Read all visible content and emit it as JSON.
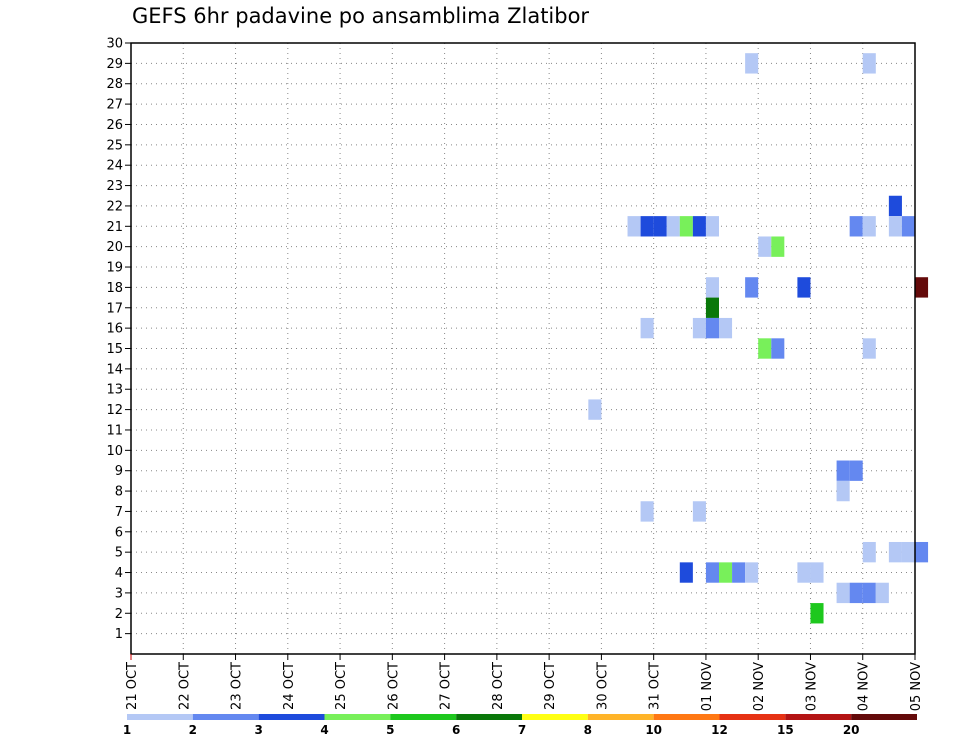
{
  "chart_data": {
    "type": "heatmap",
    "title": "GEFS 6hr padavine po ansamblima Zlatibor",
    "xlabel": "",
    "ylabel": "",
    "y_range": [
      0,
      30
    ],
    "y_ticks": [
      1,
      2,
      3,
      4,
      5,
      6,
      7,
      8,
      9,
      10,
      11,
      12,
      13,
      14,
      15,
      16,
      17,
      18,
      19,
      20,
      21,
      22,
      23,
      24,
      25,
      26,
      27,
      28,
      29,
      30
    ],
    "x_ticks": [
      "21 OCT",
      "22 OCT",
      "23 OCT",
      "24 OCT",
      "25 OCT",
      "26 OCT",
      "27 OCT",
      "28 OCT",
      "29 OCT",
      "30 OCT",
      "31 OCT",
      "01 NOV",
      "02 NOV",
      "03 NOV",
      "04 NOV",
      "05 NOV"
    ],
    "time_step": "6hr",
    "grid": true,
    "legend_placement": "bottom",
    "legend_levels": [
      "1",
      "2",
      "3",
      "4",
      "5",
      "6",
      "7",
      "8",
      "10",
      "12",
      "15",
      "20"
    ],
    "legend_colors": [
      "#b4c8f5",
      "#6488f0",
      "#1e4bdc",
      "#78f05a",
      "#1ec81e",
      "#0a780a",
      "#ffff14",
      "#ffb428",
      "#ff7814",
      "#e63214",
      "#b41414",
      "#640a0a"
    ],
    "cells": [
      {
        "member": 29,
        "time": "01 NOV 18Z",
        "value": 1
      },
      {
        "member": 29,
        "time": "04 NOV 00Z",
        "value": 1
      },
      {
        "member": 22,
        "time": "04 NOV 12Z",
        "value": 3
      },
      {
        "member": 21,
        "time": "30 OCT 12Z",
        "value": 1
      },
      {
        "member": 21,
        "time": "30 OCT 18Z",
        "value": 3
      },
      {
        "member": 21,
        "time": "31 OCT 00Z",
        "value": 3
      },
      {
        "member": 21,
        "time": "31 OCT 06Z",
        "value": 1
      },
      {
        "member": 21,
        "time": "31 OCT 12Z",
        "value": 4
      },
      {
        "member": 21,
        "time": "31 OCT 18Z",
        "value": 3
      },
      {
        "member": 21,
        "time": "01 NOV 00Z",
        "value": 1
      },
      {
        "member": 21,
        "time": "03 NOV 18Z",
        "value": 2
      },
      {
        "member": 21,
        "time": "04 NOV 00Z",
        "value": 1
      },
      {
        "member": 21,
        "time": "04 NOV 12Z",
        "value": 1
      },
      {
        "member": 21,
        "time": "04 NOV 18Z",
        "value": 2
      },
      {
        "member": 20,
        "time": "02 NOV 00Z",
        "value": 1
      },
      {
        "member": 20,
        "time": "02 NOV 06Z",
        "value": 4
      },
      {
        "member": 18,
        "time": "01 NOV 00Z",
        "value": 1
      },
      {
        "member": 18,
        "time": "01 NOV 18Z",
        "value": 2
      },
      {
        "member": 18,
        "time": "02 NOV 18Z",
        "value": 3
      },
      {
        "member": 18,
        "time": "05 NOV 00Z",
        "value": 20
      },
      {
        "member": 17,
        "time": "01 NOV 00Z",
        "value": 6
      },
      {
        "member": 16,
        "time": "30 OCT 18Z",
        "value": 1
      },
      {
        "member": 16,
        "time": "31 OCT 18Z",
        "value": 1
      },
      {
        "member": 16,
        "time": "01 NOV 00Z",
        "value": 2
      },
      {
        "member": 16,
        "time": "01 NOV 06Z",
        "value": 1
      },
      {
        "member": 15,
        "time": "02 NOV 00Z",
        "value": 4
      },
      {
        "member": 15,
        "time": "02 NOV 06Z",
        "value": 2
      },
      {
        "member": 15,
        "time": "04 NOV 00Z",
        "value": 1
      },
      {
        "member": 12,
        "time": "29 OCT 18Z",
        "value": 1
      },
      {
        "member": 9,
        "time": "03 NOV 12Z",
        "value": 2
      },
      {
        "member": 9,
        "time": "03 NOV 18Z",
        "value": 2
      },
      {
        "member": 8,
        "time": "03 NOV 12Z",
        "value": 1
      },
      {
        "member": 7,
        "time": "30 OCT 18Z",
        "value": 1
      },
      {
        "member": 7,
        "time": "31 OCT 18Z",
        "value": 1
      },
      {
        "member": 5,
        "time": "04 NOV 00Z",
        "value": 1
      },
      {
        "member": 5,
        "time": "04 NOV 12Z",
        "value": 1
      },
      {
        "member": 5,
        "time": "04 NOV 18Z",
        "value": 1
      },
      {
        "member": 5,
        "time": "05 NOV 00Z",
        "value": 2
      },
      {
        "member": 4,
        "time": "31 OCT 12Z",
        "value": 3
      },
      {
        "member": 4,
        "time": "01 NOV 00Z",
        "value": 2
      },
      {
        "member": 4,
        "time": "01 NOV 06Z",
        "value": 4
      },
      {
        "member": 4,
        "time": "01 NOV 12Z",
        "value": 2
      },
      {
        "member": 4,
        "time": "01 NOV 18Z",
        "value": 1
      },
      {
        "member": 4,
        "time": "02 NOV 18Z",
        "value": 1
      },
      {
        "member": 4,
        "time": "03 NOV 00Z",
        "value": 1
      },
      {
        "member": 3,
        "time": "03 NOV 12Z",
        "value": 1
      },
      {
        "member": 3,
        "time": "03 NOV 18Z",
        "value": 2
      },
      {
        "member": 3,
        "time": "04 NOV 00Z",
        "value": 2
      },
      {
        "member": 3,
        "time": "04 NOV 06Z",
        "value": 1
      },
      {
        "member": 2,
        "time": "03 NOV 00Z",
        "value": 5
      }
    ]
  }
}
